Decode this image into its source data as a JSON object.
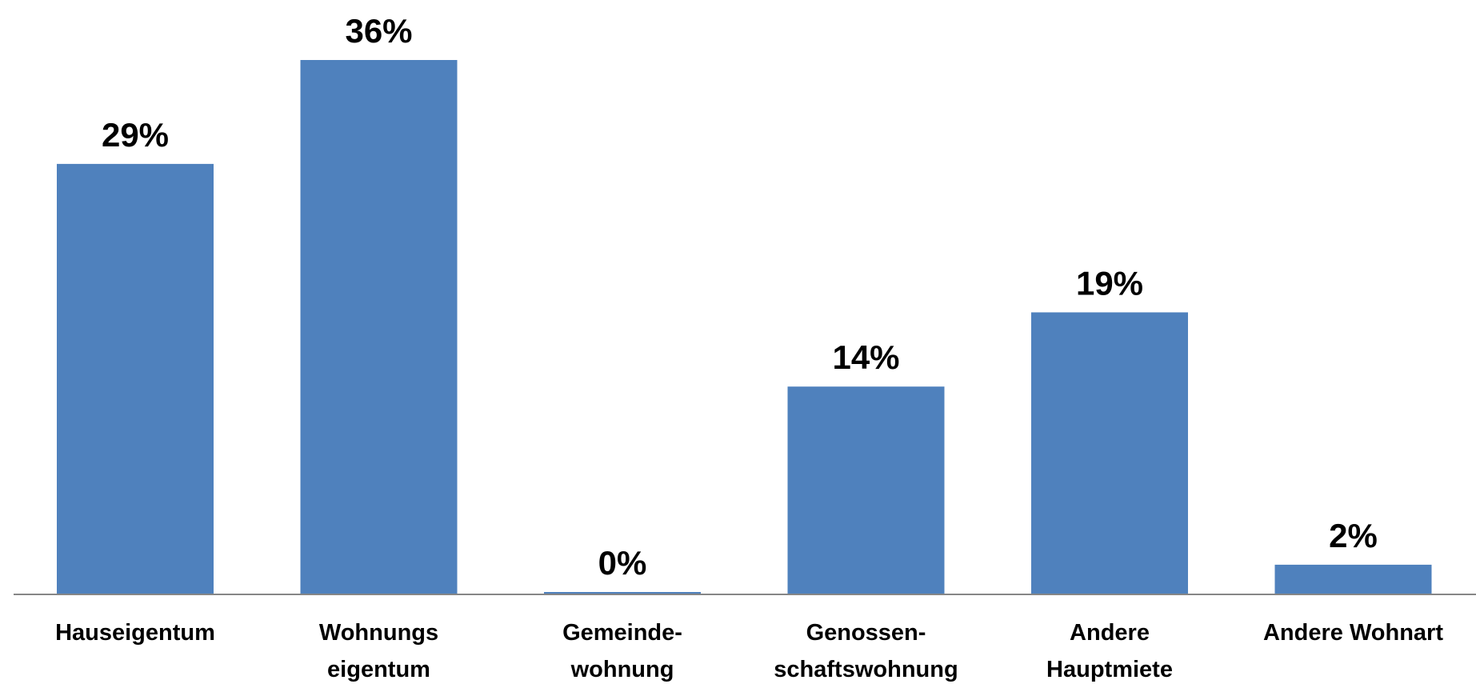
{
  "chart_data": {
    "type": "bar",
    "categories": [
      [
        "Hauseigentum"
      ],
      [
        "Wohnungs",
        "eigentum"
      ],
      [
        "Gemeinde-",
        "wohnung"
      ],
      [
        "Genossen-",
        "schaftswohnung"
      ],
      [
        "Andere",
        "Hauptmiete"
      ],
      [
        "Andere Wohnart"
      ]
    ],
    "values": [
      29,
      36,
      0,
      14,
      19,
      2
    ],
    "value_labels": [
      "29%",
      "36%",
      "0%",
      "14%",
      "19%",
      "2%"
    ],
    "unit": "%",
    "title": "",
    "xlabel": "",
    "ylabel": "",
    "ylim": [
      0,
      36
    ],
    "grid": false,
    "legend": "none",
    "bar_color": "#4F81BD",
    "axis_color": "#868686"
  }
}
